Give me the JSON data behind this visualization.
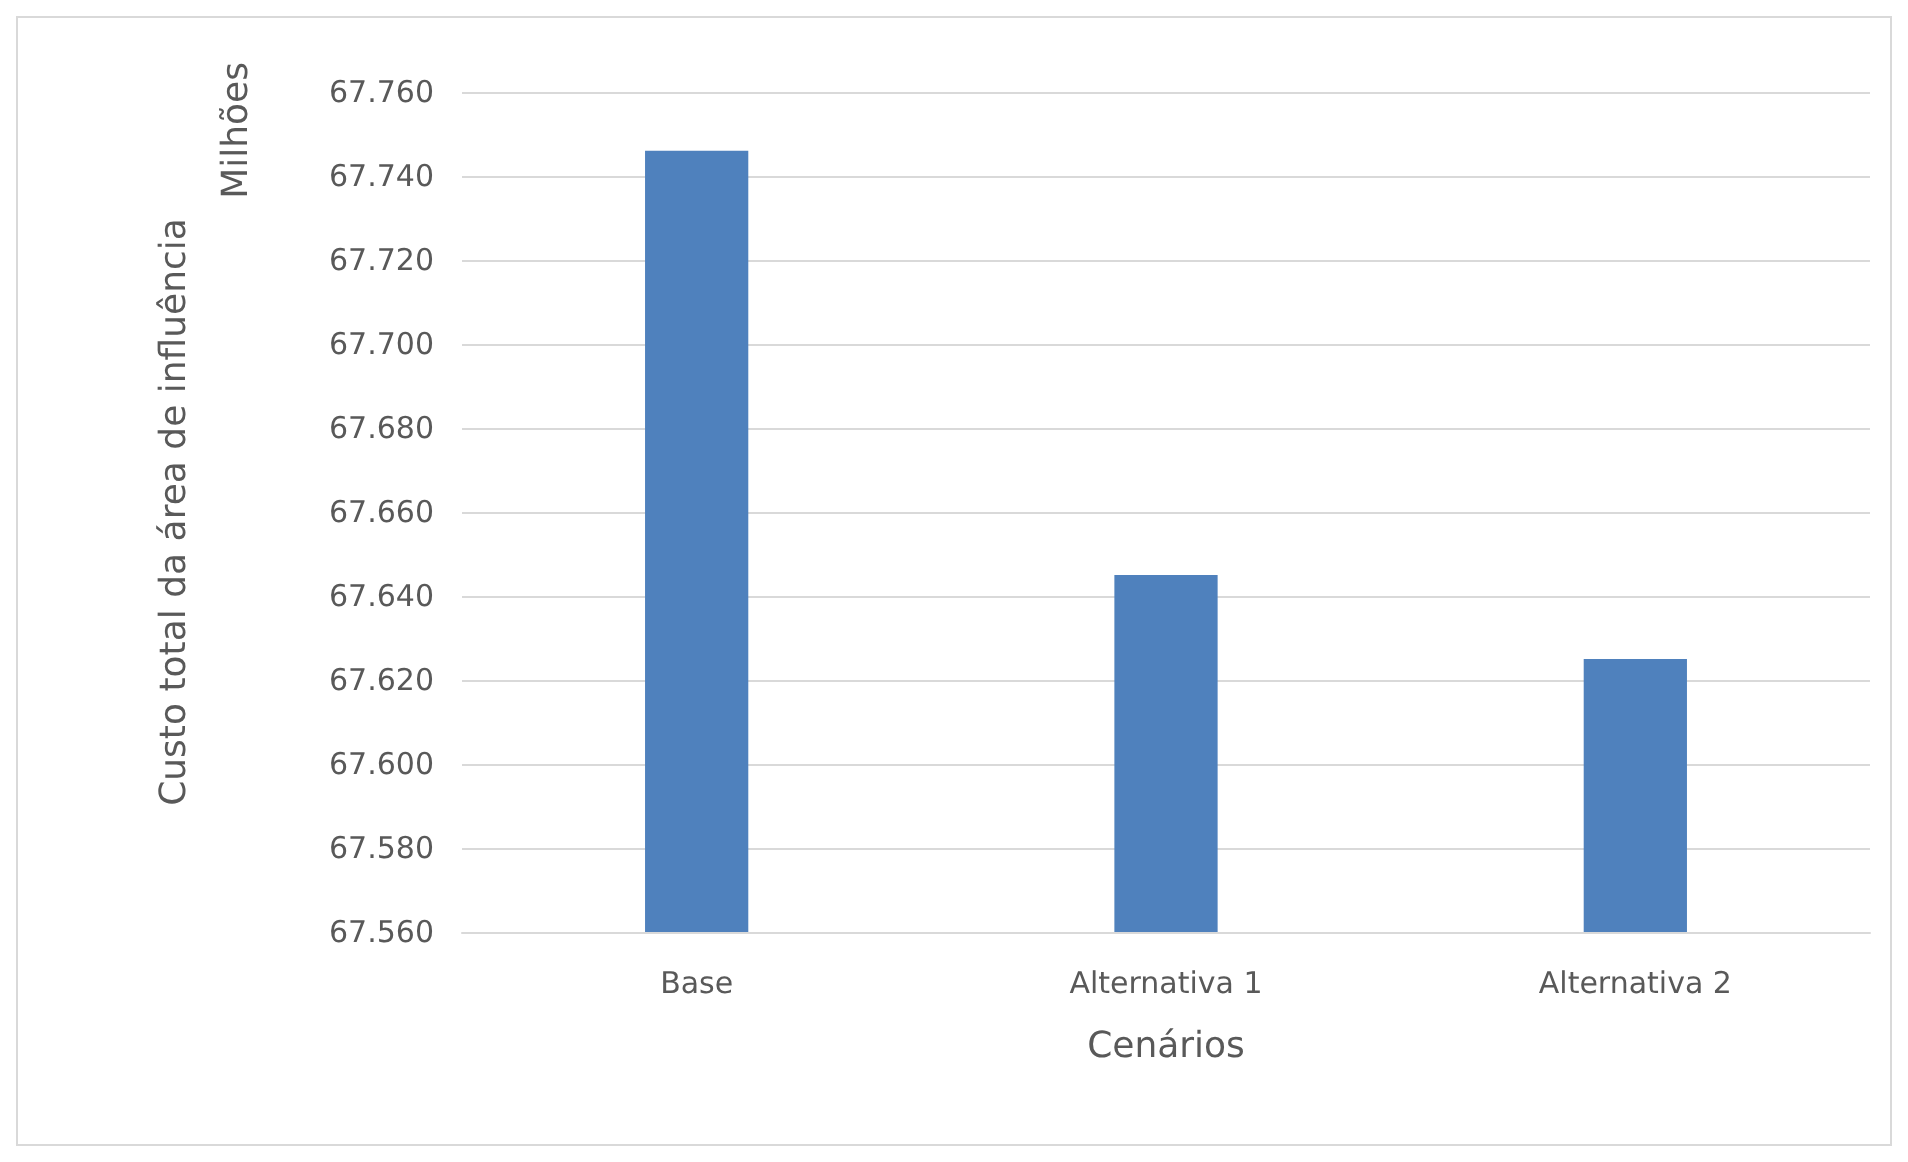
{
  "chart_data": {
    "type": "bar",
    "categories": [
      "Base",
      "Alternativa 1",
      "Alternativa 2"
    ],
    "values": [
      67746,
      67645,
      67625
    ],
    "color": "#4f81bd",
    "xlabel": "Cenários",
    "ylabel": "Custo total da área de influência",
    "annotations": [
      "Milhões"
    ],
    "ylim": [
      67560,
      67760
    ],
    "yticks": [
      {
        "value": 67560,
        "label": "67.560"
      },
      {
        "value": 67580,
        "label": "67.580"
      },
      {
        "value": 67600,
        "label": "67.600"
      },
      {
        "value": 67620,
        "label": "67.620"
      },
      {
        "value": 67640,
        "label": "67.640"
      },
      {
        "value": 67660,
        "label": "67.660"
      },
      {
        "value": 67680,
        "label": "67.680"
      },
      {
        "value": 67700,
        "label": "67.700"
      },
      {
        "value": 67720,
        "label": "67.720"
      },
      {
        "value": 67740,
        "label": "67.740"
      },
      {
        "value": 67760,
        "label": "67.760"
      }
    ],
    "grid": "y"
  }
}
